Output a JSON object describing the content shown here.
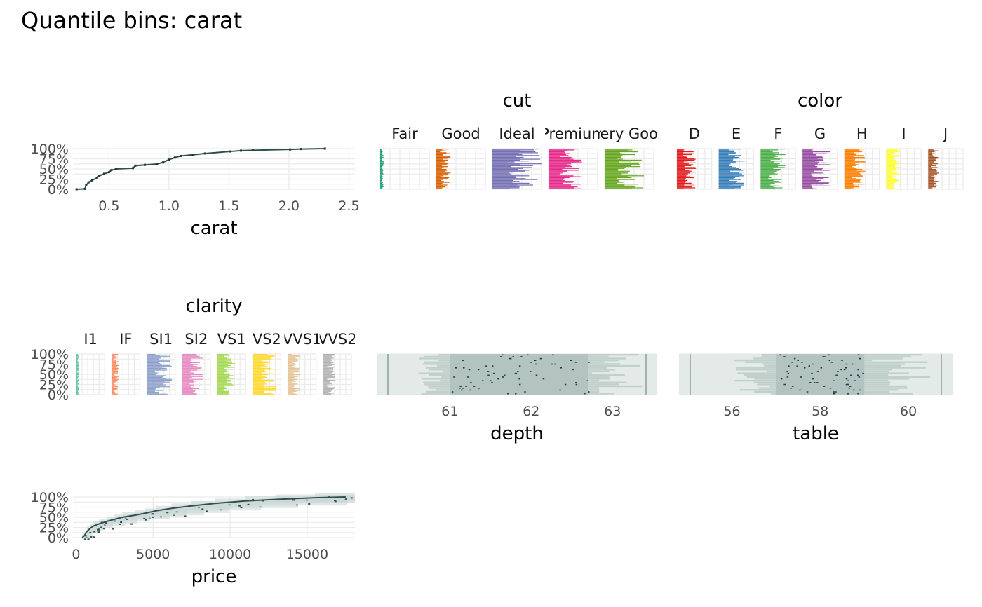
{
  "title": "Quantile bins: carat",
  "chart_data": [
    {
      "id": "carat",
      "type": "line",
      "title": "",
      "xlabel": "carat",
      "ylabel": "",
      "x_ticks": [
        "0.5",
        "1.0",
        "1.5",
        "2.0",
        "2.5"
      ],
      "x_tick_values": [
        0.5,
        1.0,
        1.5,
        2.0,
        2.5
      ],
      "xlim": [
        0.2,
        2.55
      ],
      "y_ticks": [
        "0%",
        "25%",
        "50%",
        "75%",
        "100%"
      ],
      "ylim": [
        0,
        1
      ],
      "grid": true,
      "series": [
        {
          "x": [
            0.23,
            0.3,
            0.31,
            0.33,
            0.36,
            0.4,
            0.42,
            0.46,
            0.5,
            0.52,
            0.56,
            0.7,
            0.72,
            0.8,
            0.9,
            0.95,
            1.0,
            1.05,
            1.1,
            1.2,
            1.3,
            1.51,
            1.6,
            1.7,
            2.01,
            2.1,
            2.3
          ],
          "y": [
            0.0,
            0.01,
            0.1,
            0.17,
            0.22,
            0.28,
            0.33,
            0.38,
            0.42,
            0.47,
            0.5,
            0.52,
            0.58,
            0.6,
            0.62,
            0.66,
            0.73,
            0.78,
            0.82,
            0.85,
            0.88,
            0.93,
            0.95,
            0.96,
            0.98,
            0.99,
            1.0
          ]
        }
      ]
    },
    {
      "id": "cut",
      "type": "bar",
      "title": "cut",
      "categories": [
        "Fair",
        "Good",
        "Ideal",
        "Premium",
        "Very Good"
      ],
      "colors": [
        "#1b9e77",
        "#d95f02",
        "#7570b3",
        "#e7298a",
        "#66a61e"
      ],
      "relative_share": [
        0.08,
        0.3,
        1.0,
        0.7,
        0.8
      ],
      "ylim": [
        0,
        1
      ]
    },
    {
      "id": "color",
      "type": "bar",
      "title": "color",
      "categories": [
        "D",
        "E",
        "F",
        "G",
        "H",
        "I",
        "J"
      ],
      "colors": [
        "#e41a1c",
        "#377eb8",
        "#4daf4a",
        "#984ea3",
        "#ff7f00",
        "#ffff33",
        "#a65628"
      ],
      "relative_share": [
        0.55,
        0.75,
        0.72,
        0.8,
        0.6,
        0.45,
        0.3
      ],
      "ylim": [
        0,
        1
      ]
    },
    {
      "id": "clarity",
      "type": "bar",
      "title": "clarity",
      "categories": [
        "I1",
        "IF",
        "SI1",
        "SI2",
        "VS1",
        "VS2",
        "VVS1",
        "VVS2"
      ],
      "colors": [
        "#66c2a5",
        "#fc8d62",
        "#8da0cb",
        "#e78ac3",
        "#a6d854",
        "#ffd92f",
        "#e5c494",
        "#b3b3b3"
      ],
      "relative_share": [
        0.1,
        0.25,
        0.9,
        0.75,
        0.65,
        0.85,
        0.45,
        0.45
      ],
      "y_ticks": [
        "0%",
        "25%",
        "50%",
        "75%",
        "100%"
      ],
      "ylim": [
        0,
        1
      ]
    },
    {
      "id": "depth",
      "type": "heatmap",
      "title": "",
      "xlabel": "depth",
      "x_ticks": [
        "61",
        "62",
        "63"
      ],
      "x_tick_values": [
        61,
        62,
        63
      ],
      "xlim": [
        60.1,
        63.55
      ],
      "ylim": [
        0,
        1
      ],
      "core_range": [
        61.0,
        62.7
      ]
    },
    {
      "id": "table",
      "type": "heatmap",
      "title": "",
      "xlabel": "table",
      "x_ticks": [
        "56",
        "58",
        "60"
      ],
      "x_tick_values": [
        56,
        58,
        60
      ],
      "xlim": [
        54.8,
        61.0
      ],
      "ylim": [
        0,
        1
      ],
      "core_range": [
        57.0,
        59.0
      ]
    },
    {
      "id": "price",
      "type": "line",
      "title": "",
      "xlabel": "price",
      "x_ticks": [
        "0",
        "5000",
        "10000",
        "15000"
      ],
      "x_tick_values": [
        0,
        5000,
        10000,
        15000
      ],
      "xlim": [
        -200,
        18100
      ],
      "y_ticks": [
        "0%",
        "25%",
        "50%",
        "75%",
        "100%"
      ],
      "ylim": [
        0,
        1
      ],
      "grid": true,
      "series": [
        {
          "x": [
            400,
            550,
            700,
            900,
            1100,
            1500,
            2000,
            2500,
            3000,
            3800,
            4500,
            5200,
            6200,
            7500,
            9000,
            11000,
            13000,
            15500,
            17500
          ],
          "y": [
            0.0,
            0.05,
            0.15,
            0.22,
            0.28,
            0.34,
            0.4,
            0.45,
            0.5,
            0.55,
            0.6,
            0.66,
            0.72,
            0.78,
            0.84,
            0.9,
            0.94,
            0.98,
            1.0
          ]
        }
      ]
    }
  ]
}
